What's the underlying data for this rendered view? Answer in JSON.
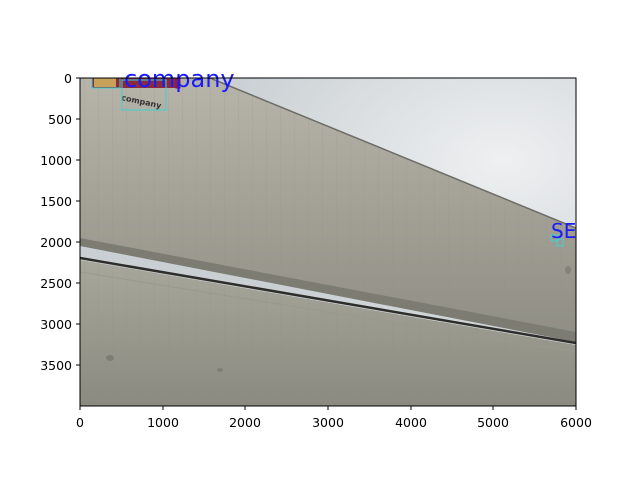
{
  "axes": {
    "x_ticks": [
      "0",
      "1000",
      "2000",
      "3000",
      "4000",
      "5000",
      "6000"
    ],
    "y_ticks": [
      "0",
      "500",
      "1000",
      "1500",
      "2000",
      "2500",
      "3000",
      "3500"
    ],
    "x_range": [
      0,
      6000
    ],
    "y_range": [
      0,
      4000
    ],
    "y_inverted": true
  },
  "image": {
    "subject": "truck-trailer-side-panel",
    "colors": {
      "sky": "#d6dadd",
      "panel_light": "#a9a79c",
      "panel_dark": "#8c8b80",
      "rail": "#2e2d2a",
      "box_cyan": "#40d0d0",
      "box_red": "#a01020",
      "text_blue": "#1a1aff"
    }
  },
  "annotations": {
    "labels": [
      {
        "text": "company",
        "kind": "detected-label"
      },
      {
        "text": "SE",
        "kind": "detected-label"
      }
    ],
    "logo_text": "company"
  }
}
